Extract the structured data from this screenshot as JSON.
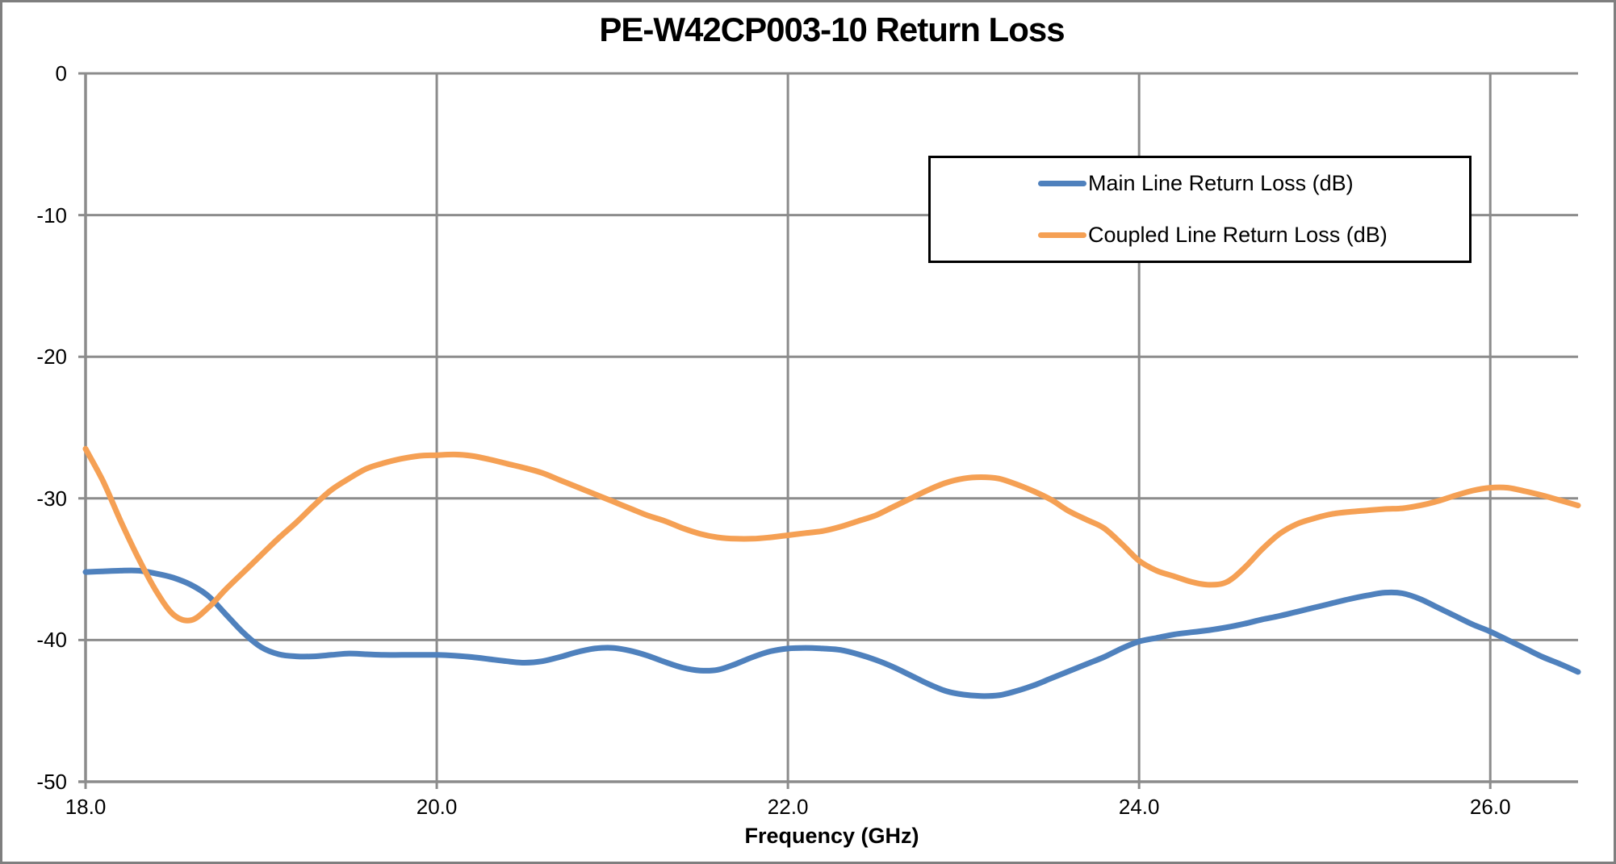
{
  "colors": {
    "grid": "#8C8C8C",
    "axis": "#8C8C8C",
    "frame": "#7F7F7F",
    "legend_border": "#000000",
    "background": "#FFFFFF",
    "text": "#000000"
  },
  "chart_data": {
    "type": "line",
    "title": "PE-W42CP003-10 Return Loss",
    "xlabel": "Frequency (GHz)",
    "ylabel": "",
    "xlim": [
      18.0,
      26.5
    ],
    "ylim": [
      -50,
      0
    ],
    "grid": true,
    "legend_position": "inside upper right",
    "x_ticks": [
      {
        "value": 18.0,
        "label": "18.0"
      },
      {
        "value": 20.0,
        "label": "20.0"
      },
      {
        "value": 22.0,
        "label": "22.0"
      },
      {
        "value": 24.0,
        "label": "24.0"
      },
      {
        "value": 26.0,
        "label": "26.0"
      }
    ],
    "y_ticks": [
      {
        "value": 0,
        "label": "0"
      },
      {
        "value": -10,
        "label": "-10"
      },
      {
        "value": -20,
        "label": "-20"
      },
      {
        "value": -30,
        "label": "-30"
      },
      {
        "value": -40,
        "label": "-40"
      },
      {
        "value": -50,
        "label": "-50"
      }
    ],
    "series": [
      {
        "name": "Main Line Return Loss (dB)",
        "color": "#4F81BD",
        "x": [
          18.0,
          18.1,
          18.2,
          18.3,
          18.4,
          18.5,
          18.6,
          18.7,
          18.8,
          18.9,
          19.0,
          19.1,
          19.2,
          19.3,
          19.4,
          19.5,
          19.6,
          19.7,
          19.8,
          19.9,
          20.0,
          20.1,
          20.2,
          20.3,
          20.4,
          20.5,
          20.6,
          20.7,
          20.8,
          20.9,
          21.0,
          21.1,
          21.2,
          21.3,
          21.4,
          21.5,
          21.6,
          21.7,
          21.8,
          21.9,
          22.0,
          22.1,
          22.2,
          22.3,
          22.4,
          22.5,
          22.6,
          22.7,
          22.8,
          22.9,
          23.0,
          23.1,
          23.2,
          23.3,
          23.4,
          23.5,
          23.6,
          23.7,
          23.8,
          23.9,
          24.0,
          24.1,
          24.2,
          24.3,
          24.4,
          24.5,
          24.6,
          24.7,
          24.8,
          24.9,
          25.0,
          25.1,
          25.2,
          25.3,
          25.4,
          25.5,
          25.6,
          25.7,
          25.8,
          25.9,
          26.0,
          26.1,
          26.2,
          26.3,
          26.4,
          26.5
        ],
        "y": [
          -35.2,
          -35.15,
          -35.1,
          -35.1,
          -35.3,
          -35.6,
          -36.1,
          -36.9,
          -38.2,
          -39.5,
          -40.5,
          -41.0,
          -41.15,
          -41.15,
          -41.05,
          -40.95,
          -41.0,
          -41.05,
          -41.05,
          -41.05,
          -41.05,
          -41.1,
          -41.2,
          -41.35,
          -41.5,
          -41.6,
          -41.5,
          -41.2,
          -40.85,
          -40.6,
          -40.55,
          -40.75,
          -41.1,
          -41.55,
          -41.95,
          -42.15,
          -42.1,
          -41.7,
          -41.2,
          -40.8,
          -40.6,
          -40.55,
          -40.6,
          -40.7,
          -41.0,
          -41.4,
          -41.9,
          -42.5,
          -43.1,
          -43.6,
          -43.85,
          -43.95,
          -43.9,
          -43.6,
          -43.2,
          -42.7,
          -42.2,
          -41.7,
          -41.2,
          -40.6,
          -40.1,
          -39.85,
          -39.6,
          -39.45,
          -39.3,
          -39.1,
          -38.85,
          -38.55,
          -38.3,
          -38.0,
          -37.7,
          -37.4,
          -37.1,
          -36.85,
          -36.65,
          -36.7,
          -37.1,
          -37.7,
          -38.3,
          -38.9,
          -39.4,
          -40.0,
          -40.6,
          -41.2,
          -41.7,
          -42.25
        ]
      },
      {
        "name": "Coupled Line Return Loss (dB)",
        "color": "#F5A054",
        "x": [
          18.0,
          18.1,
          18.2,
          18.3,
          18.4,
          18.5,
          18.6,
          18.7,
          18.8,
          18.9,
          19.0,
          19.1,
          19.2,
          19.3,
          19.4,
          19.5,
          19.6,
          19.7,
          19.8,
          19.9,
          20.0,
          20.1,
          20.2,
          20.3,
          20.4,
          20.5,
          20.6,
          20.7,
          20.8,
          20.9,
          21.0,
          21.1,
          21.2,
          21.3,
          21.4,
          21.5,
          21.6,
          21.7,
          21.8,
          21.9,
          22.0,
          22.1,
          22.2,
          22.3,
          22.4,
          22.5,
          22.6,
          22.7,
          22.8,
          22.9,
          23.0,
          23.1,
          23.2,
          23.3,
          23.4,
          23.5,
          23.6,
          23.7,
          23.8,
          23.9,
          24.0,
          24.1,
          24.2,
          24.3,
          24.4,
          24.5,
          24.6,
          24.7,
          24.8,
          24.9,
          25.0,
          25.1,
          25.2,
          25.3,
          25.4,
          25.5,
          25.6,
          25.7,
          25.8,
          25.9,
          26.0,
          26.1,
          26.2,
          26.3,
          26.4,
          26.5
        ],
        "y": [
          -26.5,
          -28.8,
          -31.6,
          -34.2,
          -36.5,
          -38.2,
          -38.6,
          -37.7,
          -36.4,
          -35.2,
          -34.0,
          -32.8,
          -31.7,
          -30.5,
          -29.4,
          -28.6,
          -27.9,
          -27.5,
          -27.2,
          -27.0,
          -26.95,
          -26.9,
          -27.0,
          -27.25,
          -27.55,
          -27.85,
          -28.2,
          -28.7,
          -29.2,
          -29.7,
          -30.2,
          -30.7,
          -31.2,
          -31.6,
          -32.1,
          -32.5,
          -32.75,
          -32.85,
          -32.85,
          -32.75,
          -32.6,
          -32.45,
          -32.3,
          -32.0,
          -31.6,
          -31.2,
          -30.6,
          -30.0,
          -29.4,
          -28.9,
          -28.6,
          -28.5,
          -28.6,
          -29.0,
          -29.5,
          -30.1,
          -30.9,
          -31.5,
          -32.1,
          -33.2,
          -34.4,
          -35.1,
          -35.5,
          -35.9,
          -36.1,
          -35.9,
          -34.9,
          -33.6,
          -32.5,
          -31.8,
          -31.4,
          -31.1,
          -30.95,
          -30.85,
          -30.75,
          -30.7,
          -30.5,
          -30.2,
          -29.8,
          -29.45,
          -29.25,
          -29.25,
          -29.5,
          -29.8,
          -30.15,
          -30.5
        ]
      }
    ]
  }
}
